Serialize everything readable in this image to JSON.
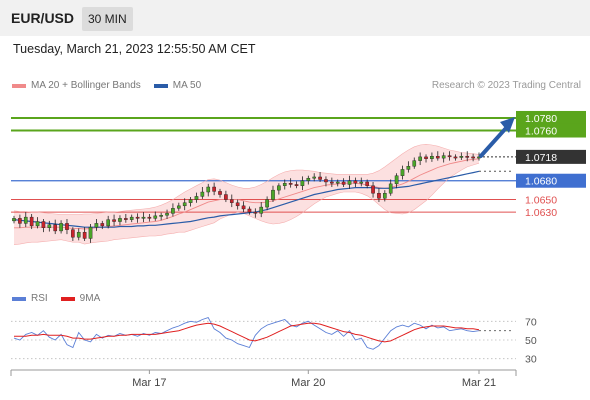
{
  "header": {
    "pair": "EUR/USD",
    "interval": "30 MIN"
  },
  "timestamp": "Tuesday, March 21, 2023 12:55:50 AM CET",
  "credit": "Research © 2023 Trading Central",
  "legend": {
    "main": [
      {
        "label": "MA 20 + Bollinger Bands",
        "color": "#f08a8a"
      },
      {
        "label": "MA 50",
        "color": "#2a5ca8"
      }
    ],
    "rsi": [
      {
        "label": "RSI",
        "color": "#5b7fd6"
      },
      {
        "label": "9MA",
        "color": "#e02020"
      }
    ]
  },
  "chart_data": {
    "type": "candlestick",
    "ylim": [
      1.0525,
      1.0815
    ],
    "x_tick_labels": [
      {
        "label": "Mar 17",
        "index": 23
      },
      {
        "label": "Mar 20",
        "index": 50
      },
      {
        "label": "Mar 21",
        "index": 79
      }
    ],
    "last_price": 1.0718,
    "levels": [
      {
        "value": 1.078,
        "label": "1.0780",
        "kind": "resistance-target",
        "color": "#5aa51c"
      },
      {
        "value": 1.076,
        "label": "1.0760",
        "kind": "resistance-target",
        "color": "#5aa51c"
      },
      {
        "value": 1.068,
        "label": "1.0680",
        "kind": "pivot",
        "color": "#3f6fd0"
      },
      {
        "value": 1.065,
        "label": "1.0650",
        "kind": "support",
        "color": "#e05050"
      },
      {
        "value": 1.063,
        "label": "1.0630",
        "kind": "support",
        "color": "#e05050"
      }
    ],
    "closes": [
      1.062,
      1.0612,
      1.0622,
      1.0608,
      1.0615,
      1.0605,
      1.061,
      1.06,
      1.0612,
      1.0602,
      1.059,
      1.0598,
      1.0588,
      1.0606,
      1.0612,
      1.0608,
      1.0618,
      1.0615,
      1.062,
      1.0618,
      1.0622,
      1.062,
      1.0622,
      1.062,
      1.0624,
      1.0625,
      1.0628,
      1.0636,
      1.064,
      1.0645,
      1.065,
      1.0655,
      1.0662,
      1.067,
      1.0663,
      1.0658,
      1.065,
      1.0645,
      1.064,
      1.0635,
      1.063,
      1.0628,
      1.0638,
      1.065,
      1.0665,
      1.0672,
      1.0676,
      1.0674,
      1.0672,
      1.068,
      1.0684,
      1.0686,
      1.0682,
      1.0678,
      1.0676,
      1.0678,
      1.0674,
      1.068,
      1.0676,
      1.0678,
      1.0672,
      1.066,
      1.0652,
      1.066,
      1.0675,
      1.0688,
      1.0698,
      1.0703,
      1.0712,
      1.0718,
      1.0715,
      1.0719,
      1.0716,
      1.072,
      1.0718,
      1.0717,
      1.0719,
      1.0718,
      1.0717,
      1.0718
    ],
    "ma20": [
      1.0605,
      1.0605,
      1.0606,
      1.0606,
      1.0606,
      1.0606,
      1.0606,
      1.0606,
      1.0606,
      1.0605,
      1.0604,
      1.0604,
      1.0603,
      1.0604,
      1.0605,
      1.0606,
      1.0607,
      1.0608,
      1.0609,
      1.061,
      1.0611,
      1.0612,
      1.0613,
      1.0614,
      1.0615,
      1.0617,
      1.062,
      1.0623,
      1.0627,
      1.063,
      1.0634,
      1.0638,
      1.0642,
      1.0646,
      1.0648,
      1.065,
      1.065,
      1.065,
      1.065,
      1.0648,
      1.0646,
      1.0645,
      1.0645,
      1.0646,
      1.0648,
      1.0651,
      1.0654,
      1.0657,
      1.066,
      1.0663,
      1.0666,
      1.0669,
      1.0671,
      1.0673,
      1.0674,
      1.0675,
      1.0676,
      1.0676,
      1.0676,
      1.0675,
      1.0673,
      1.0671,
      1.0669,
      1.0668,
      1.0669,
      1.0672,
      1.0675,
      1.0679,
      1.0684,
      1.0689,
      1.0693,
      1.0697,
      1.0701,
      1.0704,
      1.0707,
      1.0709,
      1.0711,
      1.0713,
      1.0714,
      1.0715
    ],
    "band_upper": [
      1.0632,
      1.0631,
      1.0631,
      1.063,
      1.063,
      1.0629,
      1.0628,
      1.0627,
      1.0626,
      1.0626,
      1.0626,
      1.0626,
      1.0627,
      1.0627,
      1.0628,
      1.0629,
      1.063,
      1.063,
      1.0631,
      1.0632,
      1.0633,
      1.0634,
      1.0635,
      1.0636,
      1.0638,
      1.0641,
      1.0645,
      1.065,
      1.0656,
      1.0662,
      1.0667,
      1.0672,
      1.0677,
      1.0682,
      1.0683,
      1.0681,
      1.0677,
      1.0673,
      1.067,
      1.0668,
      1.0668,
      1.067,
      1.0674,
      1.0679,
      1.0685,
      1.069,
      1.0694,
      1.0696,
      1.0697,
      1.0697,
      1.0696,
      1.0695,
      1.0693,
      1.0692,
      1.0691,
      1.069,
      1.069,
      1.069,
      1.069,
      1.069,
      1.069,
      1.0692,
      1.0696,
      1.0702,
      1.0709,
      1.0716,
      1.0723,
      1.0729,
      1.0734,
      1.0737,
      1.0738,
      1.0737,
      1.0735,
      1.0732,
      1.0729,
      1.0727,
      1.0725,
      1.0724,
      1.0723,
      1.0722
    ],
    "band_lower": [
      1.0578,
      1.0579,
      1.0581,
      1.0582,
      1.0582,
      1.0583,
      1.0584,
      1.0585,
      1.0586,
      1.0584,
      1.0582,
      1.0582,
      1.0579,
      1.0581,
      1.0582,
      1.0583,
      1.0584,
      1.0586,
      1.0587,
      1.0588,
      1.0589,
      1.059,
      1.0591,
      1.0592,
      1.0592,
      1.0593,
      1.0595,
      1.0596,
      1.0598,
      1.0598,
      1.0601,
      1.0604,
      1.0607,
      1.061,
      1.0613,
      1.0619,
      1.0623,
      1.0627,
      1.063,
      1.0628,
      1.0624,
      1.062,
      1.0616,
      1.0613,
      1.0611,
      1.0612,
      1.0614,
      1.0618,
      1.0623,
      1.0629,
      1.0636,
      1.0643,
      1.0649,
      1.0654,
      1.0657,
      1.066,
      1.0662,
      1.0662,
      1.0662,
      1.066,
      1.0656,
      1.065,
      1.0642,
      1.0634,
      1.0629,
      1.0628,
      1.0627,
      1.0629,
      1.0634,
      1.0641,
      1.0648,
      1.0657,
      1.0667,
      1.0676,
      1.0685,
      1.0691,
      1.0697,
      1.0702,
      1.0705,
      1.0708
    ],
    "ma50": [
      1.0618,
      1.0617,
      1.0616,
      1.0615,
      1.0614,
      1.0613,
      1.0612,
      1.0611,
      1.061,
      1.0609,
      1.0608,
      1.0607,
      1.0606,
      1.0606,
      1.0606,
      1.0606,
      1.0606,
      1.0606,
      1.0607,
      1.0607,
      1.0607,
      1.0608,
      1.0608,
      1.0609,
      1.0609,
      1.061,
      1.0611,
      1.0612,
      1.0613,
      1.0614,
      1.0615,
      1.0617,
      1.0619,
      1.0621,
      1.0622,
      1.0624,
      1.0625,
      1.0626,
      1.0627,
      1.0628,
      1.0629,
      1.063,
      1.0632,
      1.0634,
      1.0637,
      1.064,
      1.0643,
      1.0646,
      1.0649,
      1.0652,
      1.0655,
      1.0658,
      1.066,
      1.0662,
      1.0664,
      1.0666,
      1.0667,
      1.0668,
      1.0669,
      1.0669,
      1.0669,
      1.0669,
      1.0668,
      1.0668,
      1.0668,
      1.0669,
      1.067,
      1.0671,
      1.0673,
      1.0675,
      1.0677,
      1.0679,
      1.0681,
      1.0683,
      1.0685,
      1.0687,
      1.0689,
      1.0691,
      1.0693,
      1.0695
    ],
    "rsi": {
      "ylim": [
        20,
        80
      ],
      "levels": [
        70,
        50,
        30
      ],
      "rsi_values": [
        52,
        50,
        56,
        58,
        55,
        60,
        53,
        50,
        56,
        45,
        42,
        58,
        50,
        48,
        56,
        52,
        55,
        54,
        57,
        55,
        56,
        54,
        57,
        55,
        58,
        57,
        60,
        63,
        65,
        68,
        70,
        69,
        72,
        74,
        62,
        58,
        52,
        50,
        46,
        44,
        42,
        55,
        62,
        66,
        68,
        70,
        72,
        66,
        64,
        68,
        70,
        66,
        62,
        58,
        56,
        60,
        54,
        60,
        50,
        52,
        42,
        40,
        44,
        52,
        60,
        64,
        66,
        64,
        68,
        66,
        62,
        66,
        63,
        64,
        60,
        61,
        62,
        60,
        59,
        60
      ],
      "ma9_values": [
        54,
        54,
        54,
        55,
        55,
        56,
        55,
        55,
        55,
        54,
        52,
        52,
        51,
        51,
        52,
        53,
        54,
        54,
        55,
        55,
        56,
        56,
        56,
        56,
        56,
        57,
        58,
        59,
        60,
        62,
        64,
        66,
        67,
        68,
        67,
        65,
        62,
        59,
        56,
        53,
        50,
        49,
        51,
        53,
        56,
        59,
        62,
        65,
        66,
        67,
        68,
        68,
        67,
        65,
        63,
        61,
        59,
        58,
        56,
        55,
        53,
        51,
        49,
        48,
        49,
        52,
        55,
        58,
        61,
        63,
        64,
        65,
        65,
        65,
        64,
        63,
        63,
        62,
        62,
        61
      ],
      "tick_labels": [
        "70",
        "50",
        "30"
      ]
    }
  }
}
